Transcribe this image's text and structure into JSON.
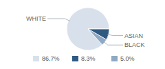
{
  "chart_data": {
    "type": "pie",
    "categories": [
      "WHITE",
      "ASIAN",
      "BLACK"
    ],
    "values": [
      86.7,
      8.3,
      5.0
    ],
    "value_labels": [
      "86.7%",
      "8.3%",
      "5.0%"
    ],
    "colors": [
      "#d8e1eb",
      "#2f5a82",
      "#8fa9c4"
    ],
    "legend": "bottom"
  }
}
